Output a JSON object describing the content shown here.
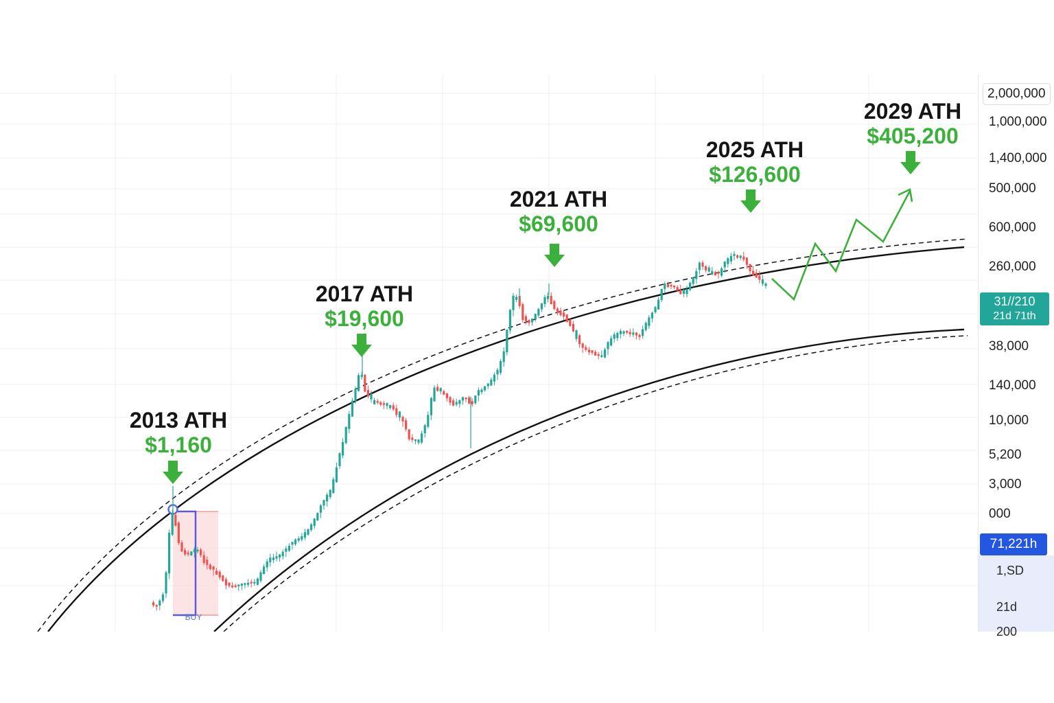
{
  "chart_data": {
    "type": "candlestick",
    "price_axis_ticks": [
      "2,000,000",
      "1,000,000",
      "1,400,000",
      "500,000",
      "600,000",
      "260,000",
      "38,000",
      "140,000",
      "10,000",
      "5,200",
      "3,000",
      "000"
    ],
    "current_price_badge": {
      "line1": "31//210",
      "line2": "21d 71th"
    },
    "last_price_badge": "71,221h",
    "axis_panel_items": [
      "1,SD",
      "21d",
      "200"
    ],
    "buy_marker": "BUY",
    "ath_annotations": [
      {
        "year": "2013 ATH",
        "price": "$1,160"
      },
      {
        "year": "2017 ATH",
        "price": "$19,600"
      },
      {
        "year": "2021 ATH",
        "price": "$69,600"
      },
      {
        "year": "2025 ATH",
        "price": "$126,600"
      },
      {
        "year": "2029 ATH",
        "price": "$405,200"
      }
    ],
    "colors": {
      "up": "#26a69a",
      "down": "#ef5350",
      "annotation_green": "#3bb03b",
      "channel": "#111111"
    },
    "grid": true
  }
}
